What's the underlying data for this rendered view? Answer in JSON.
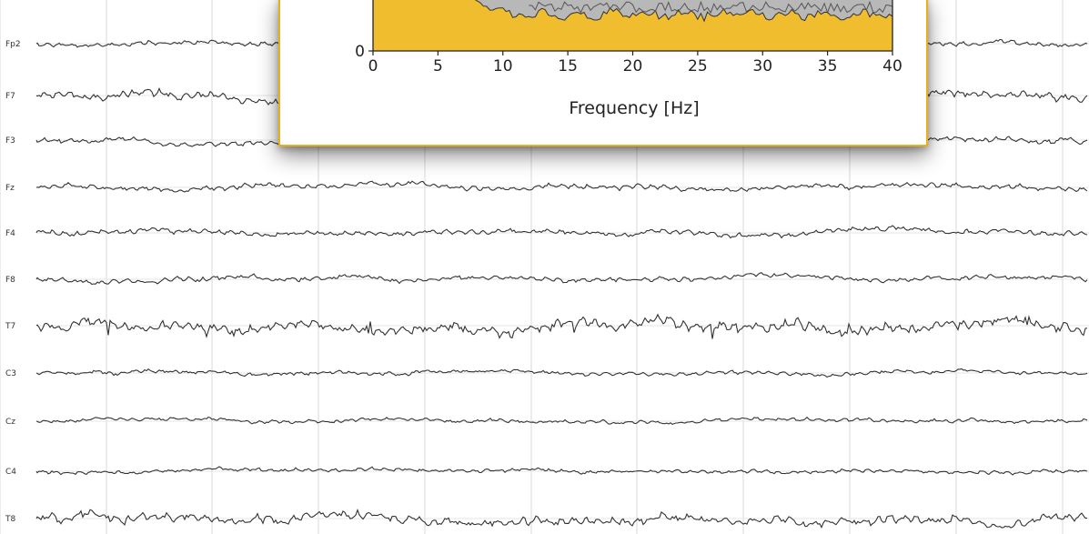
{
  "eeg": {
    "channels": [
      "Fp2",
      "F7",
      "F3",
      "Fz",
      "F4",
      "F8",
      "T7",
      "C3",
      "Cz",
      "C4",
      "T8"
    ],
    "grid_color": "#d8d8d8",
    "trace_color": "#333333"
  },
  "chart_data": {
    "type": "area",
    "xlabel": "Frequency [Hz]",
    "ylabel": "",
    "xlim": [
      0,
      40
    ],
    "x_ticks": [
      "0",
      "5",
      "10",
      "15",
      "20",
      "25",
      "30",
      "35",
      "40"
    ],
    "y_ticks": [
      "0"
    ],
    "fill_color": "#f0bd2e",
    "band_color": "#b8b8b8",
    "border_color": "#e8b11c"
  }
}
